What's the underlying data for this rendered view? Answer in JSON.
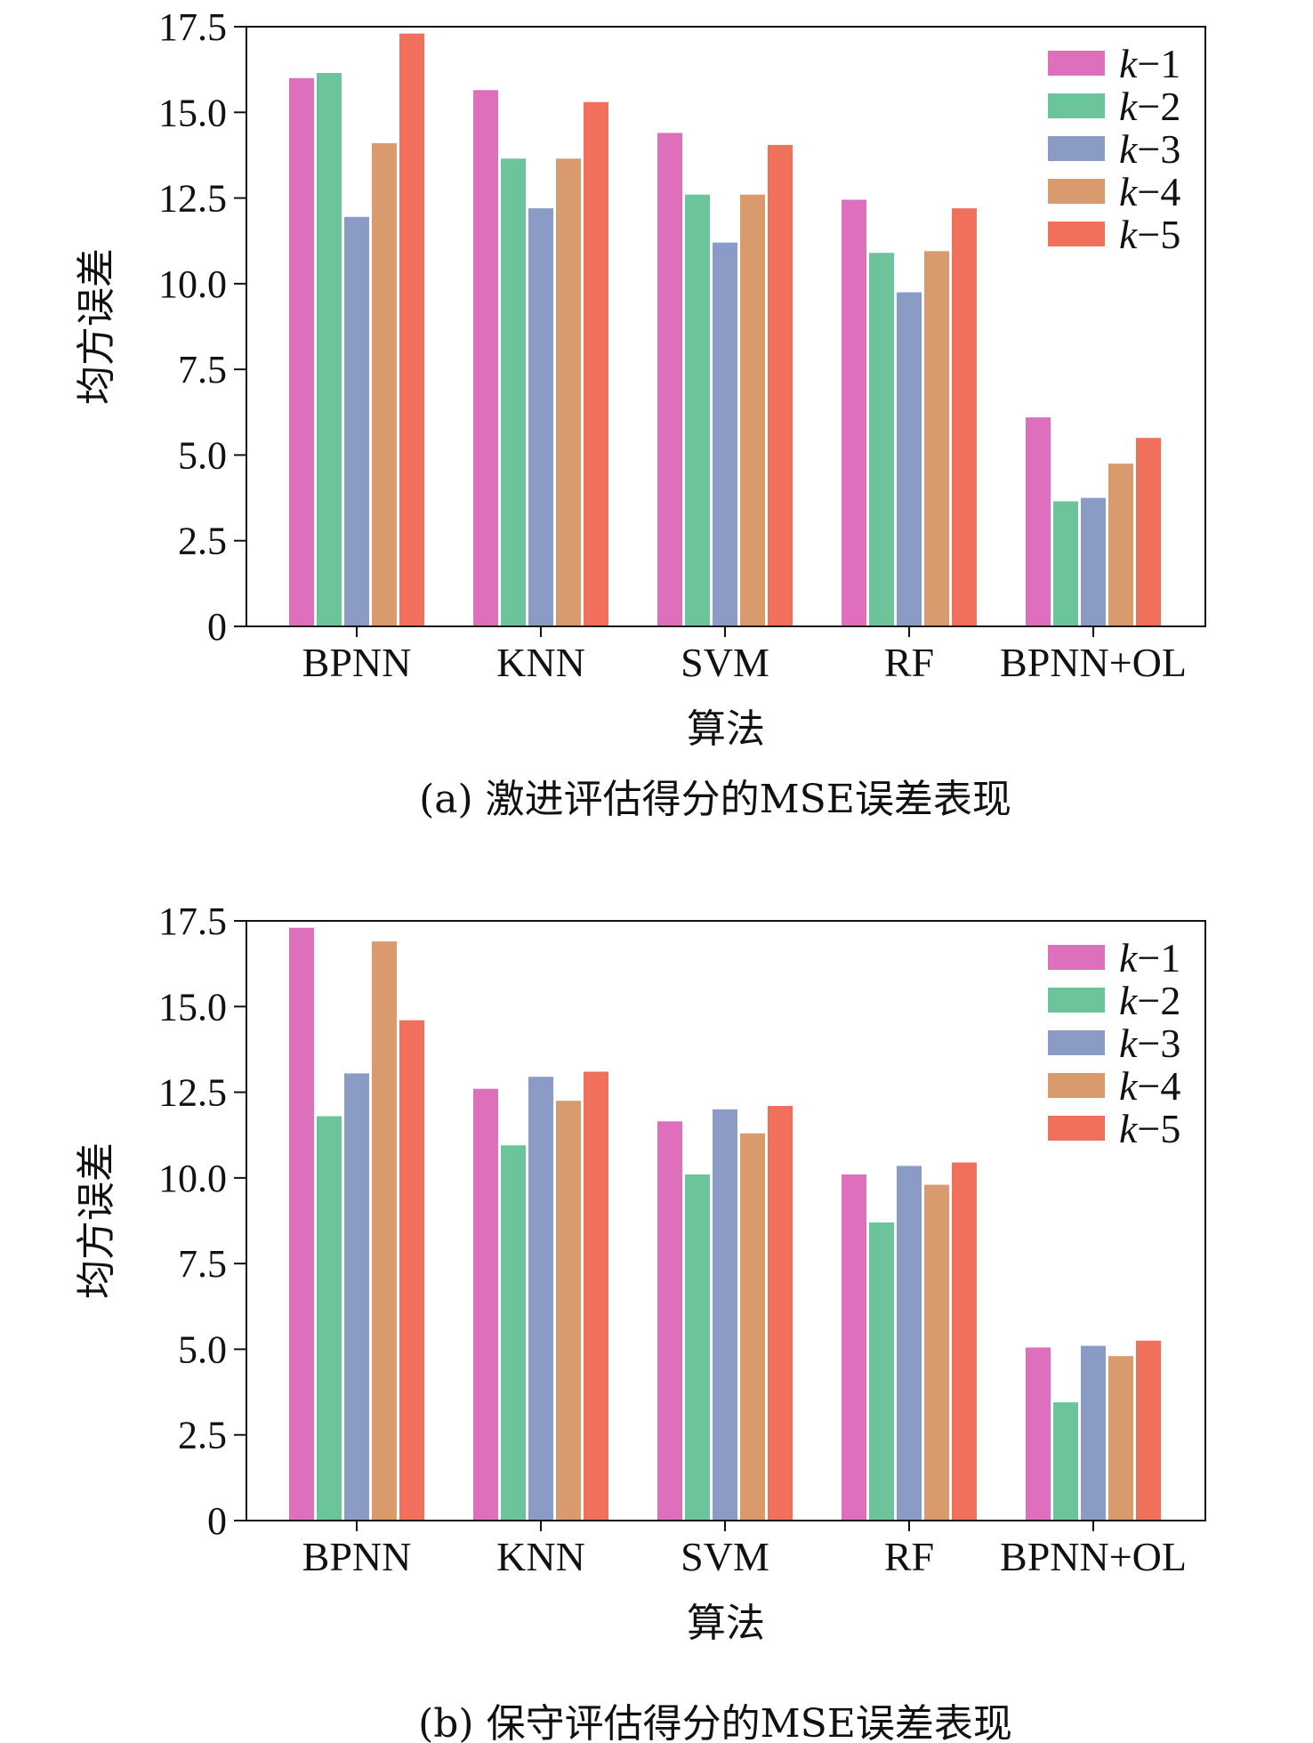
{
  "chart_data": [
    {
      "type": "bar",
      "caption": "(a) 激进评估得分的MSE误差表现",
      "xlabel": "算法",
      "ylabel": "均方误差",
      "ylim": [
        0,
        17.5
      ],
      "yticks": [
        0,
        2.5,
        5.0,
        7.5,
        10.0,
        12.5,
        15.0,
        17.5
      ],
      "ytick_labels": [
        "0",
        "2.5",
        "5.0",
        "7.5",
        "10.0",
        "12.5",
        "15.0",
        "17.5"
      ],
      "categories": [
        "BPNN",
        "KNN",
        "SVM",
        "RF",
        "BPNN+OL"
      ],
      "legend_position": "top-right",
      "series": [
        {
          "name": "k−1",
          "color": "#de6fbd",
          "values": [
            16.0,
            15.65,
            14.4,
            12.45,
            6.1
          ]
        },
        {
          "name": "k−2",
          "color": "#6cc49b",
          "values": [
            16.15,
            13.65,
            12.6,
            10.9,
            3.65
          ]
        },
        {
          "name": "k−3",
          "color": "#8a9cc6",
          "values": [
            11.95,
            12.2,
            11.2,
            9.75,
            3.75
          ]
        },
        {
          "name": "k−4",
          "color": "#d99b6d",
          "values": [
            14.1,
            13.65,
            12.6,
            10.95,
            4.75
          ]
        },
        {
          "name": "k−5",
          "color": "#f0705c",
          "values": [
            17.3,
            15.3,
            14.05,
            12.2,
            5.5
          ]
        }
      ]
    },
    {
      "type": "bar",
      "caption": "(b) 保守评估得分的MSE误差表现",
      "xlabel": "算法",
      "ylabel": "均方误差",
      "ylim": [
        0,
        17.5
      ],
      "yticks": [
        0,
        2.5,
        5.0,
        7.5,
        10.0,
        12.5,
        15.0,
        17.5
      ],
      "ytick_labels": [
        "0",
        "2.5",
        "5.0",
        "7.5",
        "10.0",
        "12.5",
        "15.0",
        "17.5"
      ],
      "categories": [
        "BPNN",
        "KNN",
        "SVM",
        "RF",
        "BPNN+OL"
      ],
      "legend_position": "top-right",
      "series": [
        {
          "name": "k−1",
          "color": "#de6fbd",
          "values": [
            17.3,
            12.6,
            11.65,
            10.1,
            5.05
          ]
        },
        {
          "name": "k−2",
          "color": "#6cc49b",
          "values": [
            11.8,
            10.95,
            10.1,
            8.7,
            3.45
          ]
        },
        {
          "name": "k−3",
          "color": "#8a9cc6",
          "values": [
            13.05,
            12.95,
            12.0,
            10.35,
            5.1
          ]
        },
        {
          "name": "k−4",
          "color": "#d99b6d",
          "values": [
            16.9,
            12.25,
            11.3,
            9.8,
            4.8
          ]
        },
        {
          "name": "k−5",
          "color": "#f0705c",
          "values": [
            14.6,
            13.1,
            12.1,
            10.45,
            5.25
          ]
        }
      ]
    }
  ]
}
